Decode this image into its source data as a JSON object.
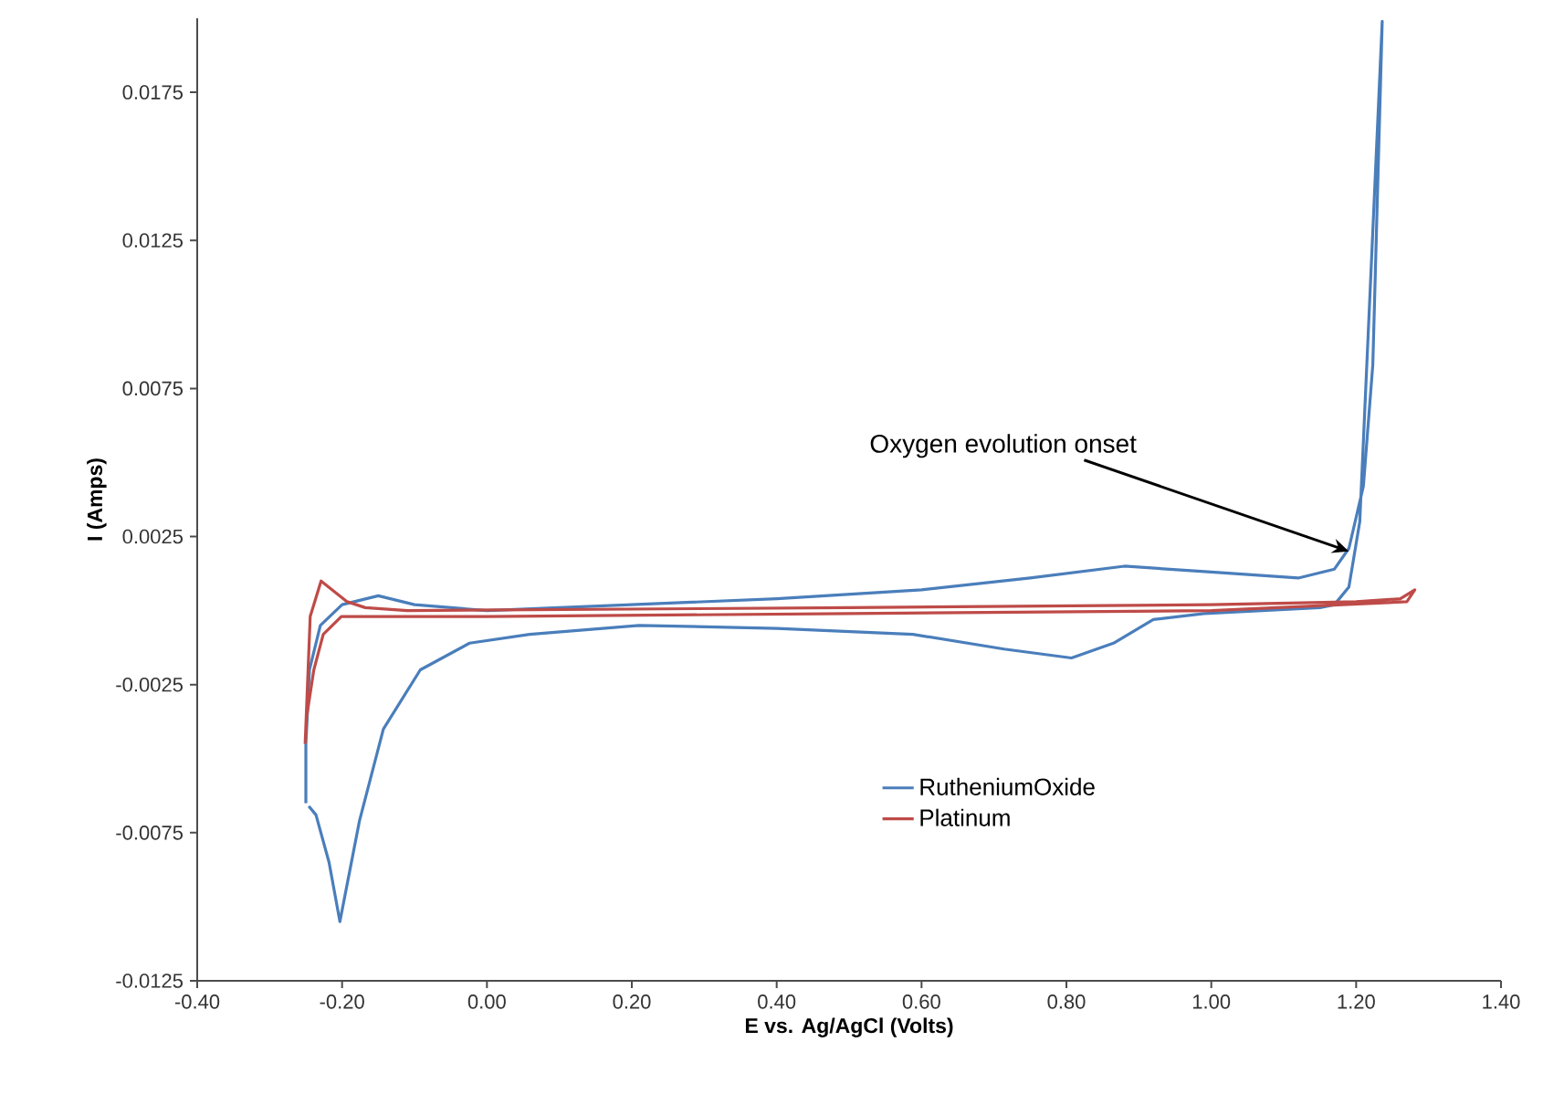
{
  "chart_data": {
    "type": "line",
    "xlabel": "E vs. Ag/AgCl (Volts)",
    "ylabel": "I (Amps)",
    "xlim": [
      -0.4,
      1.4
    ],
    "ylim": [
      -0.0125,
      0.02
    ],
    "xticks": [
      {
        "value": -0.4,
        "label": "-0.40"
      },
      {
        "value": -0.2,
        "label": "-0.20"
      },
      {
        "value": 0,
        "label": "0.00"
      },
      {
        "value": 0.2,
        "label": "0.20"
      },
      {
        "value": 0.4,
        "label": "0.40"
      },
      {
        "value": 0.6,
        "label": "0.60"
      },
      {
        "value": 0.8,
        "label": "0.80"
      },
      {
        "value": 1.0,
        "label": "1.00"
      },
      {
        "value": 1.2,
        "label": "1.20"
      },
      {
        "value": 1.4,
        "label": "1.40"
      }
    ],
    "yticks": [
      -0.0125,
      -0.0075,
      -0.0025,
      0.0025,
      0.0075,
      0.0125,
      0.0175
    ],
    "series": [
      {
        "name": "RutheniumOxide",
        "color": "#4a7ebb",
        "x": [
          -0.25,
          -0.25,
          -0.245,
          -0.23,
          -0.2,
          -0.15,
          -0.1,
          0.0,
          0.2,
          0.4,
          0.6,
          0.75,
          0.88,
          1.0,
          1.12,
          1.17,
          1.19,
          1.21,
          1.223,
          1.236,
          1.205,
          1.19,
          1.17,
          1.15,
          0.99,
          0.92,
          0.865,
          0.807,
          0.714,
          0.588,
          0.4,
          0.21,
          0.059,
          -0.024,
          -0.092,
          -0.143,
          -0.176,
          -0.203,
          -0.218,
          -0.236,
          -0.246
        ],
        "values": [
          -0.0065,
          -0.0045,
          -0.002,
          -0.0005,
          0.0002,
          0.0005,
          0.0002,
          0.0,
          0.0002,
          0.0004,
          0.0007,
          0.0011,
          0.0015,
          0.0013,
          0.0011,
          0.0014,
          0.0021,
          0.0042,
          0.0083,
          0.0199,
          0.003,
          0.0008,
          0.0002,
          0.0001,
          -0.0001,
          -0.0003,
          -0.0011,
          -0.0016,
          -0.0013,
          -0.0008,
          -0.0006,
          -0.0005,
          -0.0008,
          -0.0011,
          -0.002,
          -0.004,
          -0.0071,
          -0.0105,
          -0.0085,
          -0.0069,
          -0.0066
        ]
      },
      {
        "name": "Platinum",
        "color": "#be4b48",
        "x": [
          -0.251,
          -0.244,
          -0.229,
          -0.193,
          -0.168,
          -0.11,
          0.5,
          1.0,
          1.2,
          1.261,
          1.281,
          1.27,
          1.0,
          0.5,
          0.0,
          -0.201,
          -0.226,
          -0.239,
          -0.249,
          -0.25
        ],
        "values": [
          -0.0045,
          -0.0002,
          0.001,
          0.0003,
          0.0001,
          0.0,
          0.0001,
          0.0002,
          0.0003,
          0.0004,
          0.0007,
          0.0003,
          0.0,
          -0.0001,
          -0.0002,
          -0.0002,
          -0.0008,
          -0.002,
          -0.0036,
          -0.0042
        ]
      }
    ],
    "annotations": [
      {
        "text": "Oxygen evolution onset",
        "x": 1.19,
        "y": 0.002
      }
    ],
    "legend": "bottom right"
  }
}
